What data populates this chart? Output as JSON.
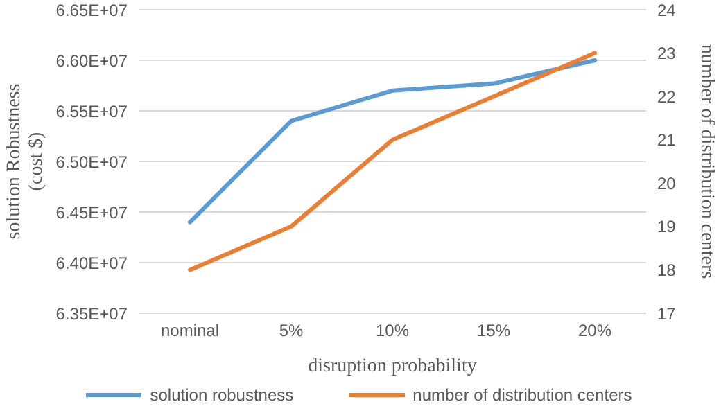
{
  "chart_data": {
    "type": "line",
    "xlabel": "disruption probability",
    "ylabel": "solution Robustness (cost $)",
    "y2label": "number of distribution centers",
    "categories": [
      "nominal",
      "5%",
      "10%",
      "15%",
      "20%"
    ],
    "series": [
      {
        "name": "solution robustness",
        "color": "#5b9bd5",
        "values": [
          64400000,
          65400000,
          65700000,
          65770000,
          66000000
        ]
      },
      {
        "name": "number of distribution centers",
        "color": "#ed7d31",
        "axis": "y2",
        "values": [
          18,
          19,
          21,
          22,
          23
        ]
      }
    ],
    "ylim": [
      63500000,
      66500000
    ],
    "yticks": [
      {
        "value": 63500000,
        "label": "6.35E+07"
      },
      {
        "value": 64000000,
        "label": "6.40E+07"
      },
      {
        "value": 64500000,
        "label": "6.45E+07"
      },
      {
        "value": 65000000,
        "label": "6.50E+07"
      },
      {
        "value": 65500000,
        "label": "6.55E+07"
      },
      {
        "value": 66000000,
        "label": "6.60E+07"
      },
      {
        "value": 66500000,
        "label": "6.65E+07"
      }
    ],
    "y2lim": [
      17,
      24
    ],
    "y2ticks": [
      17,
      18,
      19,
      20,
      21,
      22,
      23,
      24
    ],
    "grid": "y",
    "legend": "bottom",
    "marker": "none",
    "line_style": "solid"
  }
}
